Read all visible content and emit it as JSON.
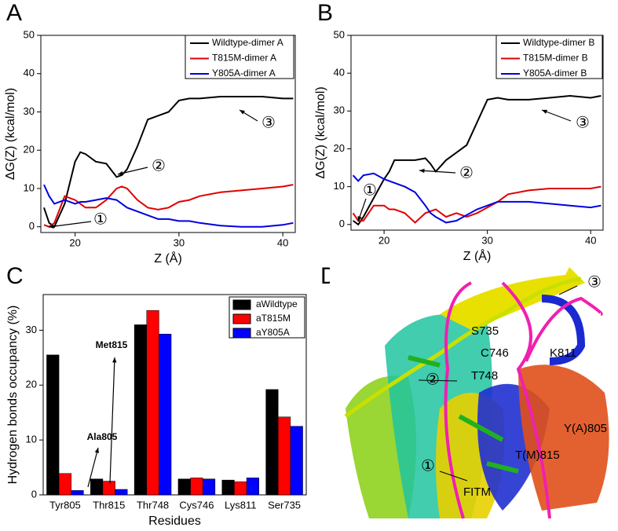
{
  "panel_labels": [
    "A",
    "B",
    "C",
    "D"
  ],
  "chart_data": [
    {
      "type": "line",
      "x_label": "Z (Å)",
      "y_label": "ΔG(Z) (kcal/mol)",
      "x": [
        17,
        17.5,
        18,
        19,
        20,
        20.5,
        21,
        22,
        23,
        24,
        24.5,
        25,
        26,
        27,
        28,
        29,
        30,
        31,
        32,
        34,
        36,
        38,
        40,
        41
      ],
      "series": [
        {
          "name": "Wildtype-dimer A",
          "color": "#000000",
          "values": [
            5,
            1,
            0,
            6,
            17,
            19.5,
            19,
            17,
            16.5,
            13,
            13.5,
            15,
            21,
            28,
            29,
            30,
            33,
            33.5,
            33.5,
            34,
            34,
            34,
            33.5,
            33.5
          ]
        },
        {
          "name": "T815M-dimer A",
          "color": "#e00000",
          "values": [
            0.5,
            0,
            1,
            8,
            7,
            6,
            5,
            5,
            7,
            10,
            10.5,
            10,
            7,
            5,
            4.5,
            5,
            6.5,
            7,
            8,
            9,
            9.5,
            10,
            10.5,
            11
          ]
        },
        {
          "name": "Y805A-dimer A",
          "color": "#0000e0",
          "values": [
            11,
            8,
            6,
            7,
            6,
            6.5,
            6.5,
            7,
            7.5,
            7,
            6,
            5,
            4,
            3,
            2,
            2,
            1.5,
            1.5,
            1,
            0.3,
            0,
            0,
            0.5,
            1
          ]
        }
      ],
      "xlim": [
        16.7,
        41.2
      ],
      "ylim": [
        -1.5,
        50
      ],
      "xticks": [
        20,
        30,
        40
      ],
      "yticks": [
        0,
        10,
        20,
        30,
        40,
        50
      ],
      "legend": "upper right",
      "annotations": [
        "①",
        "②",
        "③"
      ]
    },
    {
      "type": "line",
      "x_label": "Z (Å)",
      "y_label": "ΔG(Z) (kcal/mol)",
      "x": [
        17,
        17.5,
        18,
        19,
        20,
        20.5,
        21,
        22,
        23,
        24,
        24.5,
        25,
        26,
        27,
        28,
        29,
        30,
        31,
        32,
        34,
        36,
        38,
        40,
        41
      ],
      "series": [
        {
          "name": "Wildtype-dimer B",
          "color": "#000000",
          "values": [
            1,
            0,
            2,
            7,
            12,
            14,
            17,
            17,
            17,
            17.5,
            16,
            14,
            17,
            19,
            21,
            27,
            33,
            33.5,
            33,
            33,
            33.5,
            34,
            33.5,
            34
          ]
        },
        {
          "name": "T815M-dimer B",
          "color": "#e00000",
          "values": [
            3,
            1,
            1,
            5,
            5,
            4,
            4,
            3,
            0.5,
            3,
            3.5,
            4,
            2,
            3,
            2,
            3,
            4.5,
            6,
            8,
            9,
            9.5,
            9.5,
            9.5,
            10
          ]
        },
        {
          "name": "Y805A-dimer B",
          "color": "#0000e0",
          "values": [
            13,
            11.5,
            13,
            13.5,
            12,
            11.5,
            11,
            10,
            8.5,
            5,
            3,
            2,
            0.5,
            1,
            2.5,
            4,
            5,
            6,
            6,
            6,
            5.5,
            5,
            4.5,
            5
          ]
        }
      ],
      "xlim": [
        16.8,
        41.2
      ],
      "ylim": [
        -1.5,
        50
      ],
      "xticks": [
        20,
        30,
        40
      ],
      "yticks": [
        0,
        10,
        20,
        30,
        40,
        50
      ],
      "legend": "upper right",
      "annotations": [
        "①",
        "②",
        "③"
      ]
    },
    {
      "type": "bar",
      "x_label": "Residues",
      "y_label": "Hydrogen bonds occupancy (%)",
      "categories": [
        "Tyr805",
        "Thr815",
        "Thr748",
        "Cys746",
        "Lys811",
        "Ser735"
      ],
      "series": [
        {
          "name": "aWildtype",
          "color": "#000000",
          "values": [
            25.5,
            2.9,
            31,
            2.9,
            2.7,
            19.2
          ]
        },
        {
          "name": "aT815M",
          "color": "#ff0000",
          "values": [
            3.9,
            2.5,
            33.6,
            3.1,
            2.4,
            14.2
          ]
        },
        {
          "name": "aY805A",
          "color": "#0000ff",
          "values": [
            0.8,
            1.0,
            29.3,
            2.9,
            3.1,
            12.5
          ]
        }
      ],
      "ylim": [
        0,
        36.5
      ],
      "yticks": [
        0,
        10,
        20,
        30
      ],
      "legend": "upper right",
      "annotations": [
        "Ala805",
        "Met815"
      ]
    }
  ],
  "structure_labels": [
    "③",
    "S735",
    "C746",
    "K811",
    "②",
    "T748",
    "Y(A)805",
    "T(M)815",
    "①",
    "FITM"
  ]
}
